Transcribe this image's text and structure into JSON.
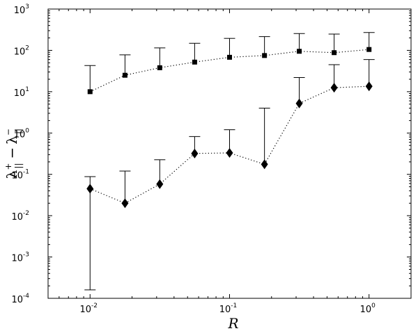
{
  "chart_data": {
    "type": "scatter",
    "title": "",
    "xlabel": "R",
    "ylabel": "λ∥⁺ − λ∥⁻",
    "x_scale": "log",
    "y_scale": "log",
    "xlim": [
      0.005,
      2
    ],
    "ylim": [
      0.0001,
      1000
    ],
    "grid": false,
    "legend": "none",
    "x_ticks": [
      {
        "base": "10",
        "exp": "-2",
        "value": 0.01
      },
      {
        "base": "10",
        "exp": "-1",
        "value": 0.1
      },
      {
        "base": "10",
        "exp": "0",
        "value": 1
      }
    ],
    "y_ticks": [
      {
        "base": "10",
        "exp": "-4",
        "value": 0.0001
      },
      {
        "base": "10",
        "exp": "-3",
        "value": 0.001
      },
      {
        "base": "10",
        "exp": "-2",
        "value": 0.01
      },
      {
        "base": "10",
        "exp": "-1",
        "value": 0.1
      },
      {
        "base": "10",
        "exp": "0",
        "value": 1
      },
      {
        "base": "10",
        "exp": "1",
        "value": 10
      },
      {
        "base": "10",
        "exp": "2",
        "value": 100
      },
      {
        "base": "10",
        "exp": "3",
        "value": 1000
      }
    ],
    "series": [
      {
        "marker": "square",
        "line_style": "dotted",
        "color": "#000000",
        "x": [
          0.01,
          0.0178,
          0.0316,
          0.0562,
          0.1,
          0.178,
          0.316,
          0.562,
          1.0
        ],
        "y": [
          10,
          25,
          38,
          52,
          68,
          75,
          95,
          88,
          105
        ],
        "err_upper": [
          43,
          78,
          115,
          148,
          195,
          215,
          255,
          248,
          270
        ]
      },
      {
        "marker": "diamond",
        "line_style": "dotted",
        "color": "#000000",
        "x": [
          0.01,
          0.0178,
          0.0316,
          0.0562,
          0.1,
          0.178,
          0.316,
          0.562,
          1.0
        ],
        "y": [
          0.045,
          0.02,
          0.058,
          0.32,
          0.33,
          0.175,
          5.2,
          12.5,
          13.5
        ],
        "err_lower": [
          0.00016,
          null,
          null,
          null,
          null,
          null,
          null,
          null,
          null
        ],
        "err_upper": [
          0.088,
          0.12,
          0.225,
          0.82,
          1.2,
          4.0,
          22,
          45,
          60
        ]
      }
    ]
  }
}
